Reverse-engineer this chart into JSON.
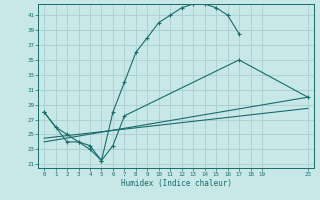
{
  "xlabel": "Humidex (Indice chaleur)",
  "bg_color": "#c8e8e8",
  "grid_color": "#a8cece",
  "line_color": "#1a6b6b",
  "xlim": [
    -0.5,
    23.5
  ],
  "ylim": [
    20.5,
    42.5
  ],
  "xticks": [
    0,
    1,
    2,
    3,
    4,
    5,
    6,
    7,
    8,
    9,
    10,
    11,
    12,
    13,
    14,
    15,
    16,
    17,
    18,
    19,
    23
  ],
  "yticks": [
    21,
    23,
    25,
    27,
    29,
    31,
    33,
    35,
    37,
    39,
    41
  ],
  "curve1_x": [
    0,
    1,
    2,
    3,
    4,
    5,
    6,
    7,
    8,
    9,
    10,
    11,
    12,
    13,
    14,
    15,
    16,
    17
  ],
  "curve1_y": [
    28,
    26,
    25,
    24,
    23,
    21.5,
    28,
    32,
    36,
    38,
    40,
    41,
    42,
    42.5,
    42.5,
    42,
    41,
    38.5
  ],
  "curve1_markers": [
    1,
    1,
    0,
    1,
    1,
    1,
    1,
    1,
    1,
    1,
    1,
    1,
    1,
    1,
    1,
    1,
    1,
    1
  ],
  "curve2_x": [
    0,
    2,
    3,
    4,
    5,
    6,
    7,
    17,
    23
  ],
  "curve2_y": [
    28,
    24,
    24,
    23.5,
    21.5,
    23.5,
    27.5,
    35,
    30
  ],
  "curve2_markers": [
    1,
    1,
    1,
    1,
    1,
    1,
    1,
    1,
    0
  ],
  "curve3_x": [
    0,
    23
  ],
  "curve3_y": [
    24,
    30
  ],
  "curve4_x": [
    0,
    23
  ],
  "curve4_y": [
    24.5,
    28.5
  ]
}
